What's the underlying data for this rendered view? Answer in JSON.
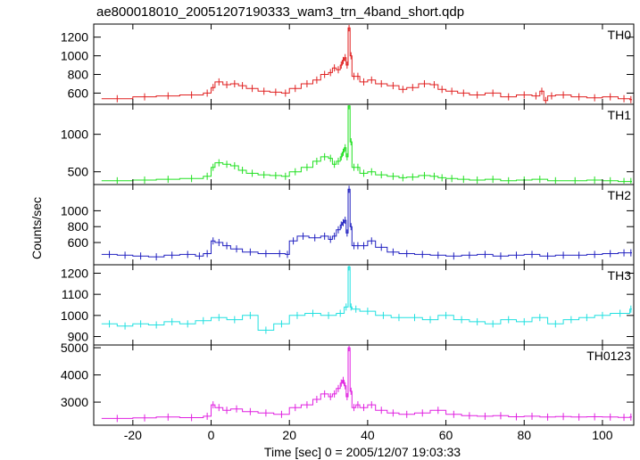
{
  "chart_data": {
    "type": "line",
    "title": "ae800018010_20051207190333_wam3_trn_4band_short.qdp",
    "xlabel": "Time [sec] 0 = 2005/12/07 19:03:33",
    "ylabel": "Counts/sec",
    "xlim": [
      -30,
      108
    ],
    "x_ticks": [
      -20,
      0,
      20,
      40,
      60,
      80,
      100
    ],
    "grid": false,
    "panels": [
      {
        "name": "TH0",
        "color": "#e02020",
        "ylim": [
          480,
          1340
        ],
        "y_ticks": [
          600,
          800,
          1000,
          1200
        ],
        "x": [
          -28,
          -20,
          -14,
          -8,
          -2,
          0,
          1,
          3,
          5,
          7,
          9,
          12,
          15,
          18,
          20,
          23,
          26,
          28,
          30,
          31,
          32,
          33,
          33.5,
          34,
          34.5,
          35,
          35.5,
          36,
          37,
          38,
          40,
          42,
          45,
          48,
          50,
          53,
          56,
          58,
          60,
          63,
          66,
          70,
          74,
          78,
          82,
          84,
          85,
          86,
          88,
          92,
          96,
          100,
          104,
          107
        ],
        "values": [
          540,
          560,
          570,
          580,
          600,
          660,
          720,
          690,
          700,
          680,
          650,
          620,
          610,
          600,
          650,
          700,
          740,
          800,
          820,
          870,
          850,
          900,
          950,
          980,
          900,
          1300,
          1000,
          780,
          780,
          720,
          740,
          700,
          680,
          640,
          660,
          700,
          690,
          640,
          620,
          600,
          580,
          600,
          560,
          580,
          570,
          620,
          520,
          570,
          580,
          560,
          550,
          560,
          540,
          530
        ]
      },
      {
        "name": "TH1",
        "color": "#20e020",
        "ylim": [
          330,
          1400
        ],
        "y_ticks": [
          500,
          1000
        ],
        "x": [
          -28,
          -20,
          -14,
          -8,
          -2,
          0,
          1,
          3,
          5,
          7,
          9,
          12,
          15,
          18,
          20,
          23,
          26,
          28,
          30,
          31,
          32,
          33,
          33.5,
          34,
          34.5,
          35,
          35.5,
          36,
          37,
          38,
          40,
          42,
          45,
          48,
          50,
          53,
          56,
          58,
          60,
          63,
          66,
          70,
          74,
          78,
          82,
          86,
          90,
          96,
          100,
          104,
          107
        ],
        "values": [
          380,
          390,
          400,
          410,
          440,
          560,
          620,
          600,
          580,
          520,
          480,
          460,
          450,
          440,
          500,
          560,
          640,
          700,
          680,
          600,
          640,
          700,
          760,
          820,
          700,
          1380,
          900,
          560,
          560,
          480,
          500,
          460,
          440,
          420,
          430,
          450,
          440,
          420,
          410,
          400,
          390,
          400,
          380,
          390,
          400,
          380,
          380,
          390,
          380,
          370,
          370
        ]
      },
      {
        "name": "TH2",
        "color": "#2020c0",
        "ylim": [
          320,
          1330
        ],
        "y_ticks": [
          600,
          800,
          1000
        ],
        "x": [
          -28,
          -24,
          -20,
          -16,
          -12,
          -8,
          -4,
          -2,
          0,
          1,
          3,
          5,
          8,
          12,
          16,
          19,
          20,
          22,
          25,
          28,
          30,
          31,
          32,
          33,
          33.5,
          34,
          34.5,
          35,
          35.5,
          36,
          37,
          38,
          40,
          42,
          45,
          48,
          52,
          56,
          60,
          64,
          68,
          72,
          76,
          80,
          84,
          88,
          92,
          96,
          100,
          104,
          107
        ],
        "values": [
          450,
          440,
          430,
          420,
          440,
          450,
          430,
          460,
          620,
          600,
          560,
          520,
          480,
          460,
          460,
          450,
          620,
          680,
          660,
          680,
          640,
          680,
          760,
          820,
          850,
          880,
          720,
          1270,
          800,
          560,
          560,
          560,
          620,
          540,
          480,
          460,
          450,
          440,
          430,
          440,
          450,
          430,
          440,
          450,
          430,
          440,
          440,
          450,
          460,
          470,
          470
        ]
      },
      {
        "name": "TH3",
        "color": "#20e0e0",
        "ylim": [
          860,
          1240
        ],
        "y_ticks": [
          900,
          1000,
          1100,
          1200
        ],
        "x": [
          -28,
          -24,
          -20,
          -16,
          -12,
          -8,
          -4,
          0,
          4,
          8,
          12,
          16,
          20,
          24,
          28,
          32,
          34,
          35,
          35.5,
          36,
          38,
          42,
          46,
          50,
          54,
          58,
          62,
          66,
          70,
          74,
          78,
          82,
          86,
          90,
          94,
          98,
          102,
          107
        ],
        "values": [
          960,
          950,
          960,
          955,
          970,
          960,
          975,
          990,
          980,
          1000,
          930,
          960,
          1000,
          1010,
          1000,
          1010,
          1040,
          1230,
          1040,
          1030,
          1020,
          1000,
          990,
          990,
          980,
          1000,
          980,
          970,
          960,
          980,
          970,
          990,
          960,
          980,
          990,
          1000,
          1010,
          1030
        ]
      },
      {
        "name": "TH0123",
        "color": "#e020e0",
        "ylim": [
          2150,
          5100
        ],
        "y_ticks": [
          3000,
          4000,
          5000
        ],
        "x": [
          -28,
          -20,
          -14,
          -8,
          -2,
          0,
          1,
          3,
          5,
          8,
          12,
          16,
          20,
          23,
          26,
          28,
          30,
          31,
          32,
          33,
          33.5,
          34,
          34.5,
          35,
          35.5,
          36,
          37,
          38,
          40,
          42,
          45,
          48,
          52,
          56,
          60,
          64,
          68,
          72,
          76,
          80,
          84,
          88,
          92,
          96,
          100,
          104,
          107
        ],
        "values": [
          2400,
          2420,
          2450,
          2430,
          2480,
          2900,
          2800,
          2700,
          2750,
          2650,
          2600,
          2550,
          2800,
          2900,
          3100,
          3300,
          3200,
          3300,
          3500,
          3700,
          3800,
          3600,
          3200,
          5000,
          3400,
          2800,
          2900,
          2800,
          2900,
          2700,
          2600,
          2550,
          2600,
          2700,
          2550,
          2500,
          2480,
          2500,
          2460,
          2480,
          2450,
          2470,
          2450,
          2460,
          2450,
          2440,
          2450
        ]
      }
    ]
  }
}
